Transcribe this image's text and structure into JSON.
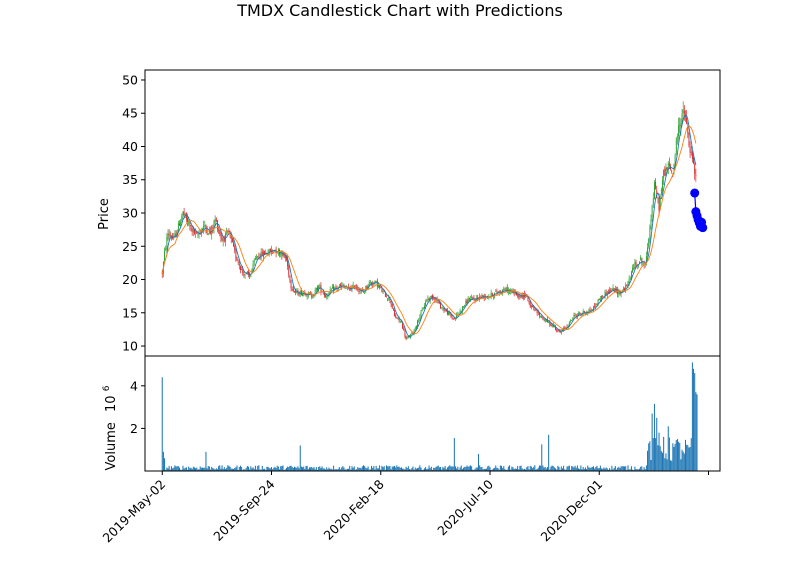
{
  "chart_data": {
    "type": "candlestick",
    "title": "TMDX Candlestick Chart with Predictions",
    "price_panel": {
      "ylabel": "Price",
      "ylim": [
        8.5,
        51.5
      ],
      "yticks": [
        10,
        15,
        20,
        25,
        30,
        35,
        40,
        45,
        50
      ],
      "moving_average_colors": [
        "#1f77b4",
        "#ff7f0e"
      ],
      "up_color": "#2ca02c",
      "down_color": "#d62728",
      "prediction_color": "#0000ff",
      "trend_anchors": [
        {
          "x": 0,
          "y": 21
        },
        {
          "x": 2,
          "y": 24
        },
        {
          "x": 5,
          "y": 27
        },
        {
          "x": 10,
          "y": 26
        },
        {
          "x": 14,
          "y": 28
        },
        {
          "x": 18,
          "y": 30
        },
        {
          "x": 24,
          "y": 28
        },
        {
          "x": 30,
          "y": 26.5
        },
        {
          "x": 36,
          "y": 28
        },
        {
          "x": 42,
          "y": 27
        },
        {
          "x": 46,
          "y": 29
        },
        {
          "x": 52,
          "y": 26
        },
        {
          "x": 58,
          "y": 27
        },
        {
          "x": 64,
          "y": 23.5
        },
        {
          "x": 70,
          "y": 21
        },
        {
          "x": 76,
          "y": 20.5
        },
        {
          "x": 82,
          "y": 23.5
        },
        {
          "x": 90,
          "y": 24
        },
        {
          "x": 98,
          "y": 24.5
        },
        {
          "x": 104,
          "y": 24
        },
        {
          "x": 108,
          "y": 23
        },
        {
          "x": 112,
          "y": 19
        },
        {
          "x": 116,
          "y": 18
        },
        {
          "x": 124,
          "y": 18
        },
        {
          "x": 130,
          "y": 17.5
        },
        {
          "x": 136,
          "y": 19
        },
        {
          "x": 142,
          "y": 17.5
        },
        {
          "x": 148,
          "y": 18.5
        },
        {
          "x": 156,
          "y": 19
        },
        {
          "x": 162,
          "y": 18.5
        },
        {
          "x": 168,
          "y": 19
        },
        {
          "x": 174,
          "y": 18
        },
        {
          "x": 180,
          "y": 19.5
        },
        {
          "x": 186,
          "y": 19.5
        },
        {
          "x": 192,
          "y": 18
        },
        {
          "x": 198,
          "y": 17
        },
        {
          "x": 202,
          "y": 14.5
        },
        {
          "x": 208,
          "y": 13.5
        },
        {
          "x": 212,
          "y": 11
        },
        {
          "x": 218,
          "y": 12
        },
        {
          "x": 224,
          "y": 14.5
        },
        {
          "x": 230,
          "y": 17
        },
        {
          "x": 236,
          "y": 17.5
        },
        {
          "x": 242,
          "y": 16
        },
        {
          "x": 248,
          "y": 15
        },
        {
          "x": 254,
          "y": 14
        },
        {
          "x": 260,
          "y": 15.5
        },
        {
          "x": 266,
          "y": 17
        },
        {
          "x": 272,
          "y": 17
        },
        {
          "x": 278,
          "y": 17.5
        },
        {
          "x": 284,
          "y": 17.5
        },
        {
          "x": 290,
          "y": 18
        },
        {
          "x": 298,
          "y": 18.5
        },
        {
          "x": 306,
          "y": 18
        },
        {
          "x": 312,
          "y": 17.5
        },
        {
          "x": 316,
          "y": 17.8
        },
        {
          "x": 320,
          "y": 16
        },
        {
          "x": 326,
          "y": 15
        },
        {
          "x": 332,
          "y": 14
        },
        {
          "x": 340,
          "y": 13
        },
        {
          "x": 346,
          "y": 12
        },
        {
          "x": 352,
          "y": 13
        },
        {
          "x": 358,
          "y": 14.5
        },
        {
          "x": 366,
          "y": 15
        },
        {
          "x": 374,
          "y": 15.5
        },
        {
          "x": 380,
          "y": 17
        },
        {
          "x": 386,
          "y": 18
        },
        {
          "x": 392,
          "y": 18.5
        },
        {
          "x": 398,
          "y": 18
        },
        {
          "x": 404,
          "y": 19
        },
        {
          "x": 410,
          "y": 22
        },
        {
          "x": 416,
          "y": 23
        },
        {
          "x": 420,
          "y": 22
        },
        {
          "x": 424,
          "y": 28
        },
        {
          "x": 428,
          "y": 34
        },
        {
          "x": 432,
          "y": 31
        },
        {
          "x": 436,
          "y": 36
        },
        {
          "x": 440,
          "y": 37
        },
        {
          "x": 444,
          "y": 36
        },
        {
          "x": 448,
          "y": 42
        },
        {
          "x": 452,
          "y": 45
        },
        {
          "x": 455,
          "y": 44.5
        },
        {
          "x": 458,
          "y": 40
        },
        {
          "x": 461,
          "y": 38
        },
        {
          "x": 464,
          "y": 35
        }
      ],
      "predictions": [
        {
          "x": 463,
          "y": 33.0
        },
        {
          "x": 464,
          "y": 30.2
        },
        {
          "x": 465,
          "y": 29.6
        },
        {
          "x": 466,
          "y": 29.0
        },
        {
          "x": 467,
          "y": 28.5
        },
        {
          "x": 468,
          "y": 28.0
        },
        {
          "x": 469,
          "y": 28.6
        },
        {
          "x": 470,
          "y": 27.8
        }
      ]
    },
    "volume_panel": {
      "ylabel": "Volume",
      "scale_label": "10",
      "scale_exponent": "6",
      "ylim": [
        0,
        5.4
      ],
      "yticks": [
        2,
        4
      ],
      "bar_color": "#1f77b4",
      "spikes": [
        {
          "x": 0,
          "v": 4.4
        },
        {
          "x": 1,
          "v": 0.9
        },
        {
          "x": 2,
          "v": 0.6
        },
        {
          "x": 38,
          "v": 0.9
        },
        {
          "x": 120,
          "v": 1.2
        },
        {
          "x": 254,
          "v": 1.55
        },
        {
          "x": 275,
          "v": 0.8
        },
        {
          "x": 330,
          "v": 1.25
        },
        {
          "x": 336,
          "v": 1.7
        },
        {
          "x": 423,
          "v": 1.3
        },
        {
          "x": 426,
          "v": 2.7
        },
        {
          "x": 428,
          "v": 3.15
        },
        {
          "x": 430,
          "v": 2.5
        },
        {
          "x": 432,
          "v": 1.8
        },
        {
          "x": 436,
          "v": 1.6
        },
        {
          "x": 440,
          "v": 2.1
        },
        {
          "x": 444,
          "v": 1.3
        },
        {
          "x": 448,
          "v": 1.5
        },
        {
          "x": 452,
          "v": 1.0
        },
        {
          "x": 458,
          "v": 1.1
        },
        {
          "x": 461,
          "v": 5.1
        },
        {
          "x": 462,
          "v": 4.8
        },
        {
          "x": 463,
          "v": 4.6
        },
        {
          "x": 464,
          "v": 3.7
        },
        {
          "x": 465,
          "v": 3.6
        }
      ]
    },
    "x_axis": {
      "num_days": 472,
      "xlim": [
        -15,
        485
      ],
      "ticks": [
        {
          "x": 0,
          "label": "2019-May-02"
        },
        {
          "x": 95,
          "label": "2019-Sep-24"
        },
        {
          "x": 190,
          "label": "2020-Feb-18"
        },
        {
          "x": 285,
          "label": "2020-Jul-10"
        },
        {
          "x": 380,
          "label": "2020-Dec-01"
        },
        {
          "x": 475,
          "label": ""
        }
      ]
    }
  }
}
